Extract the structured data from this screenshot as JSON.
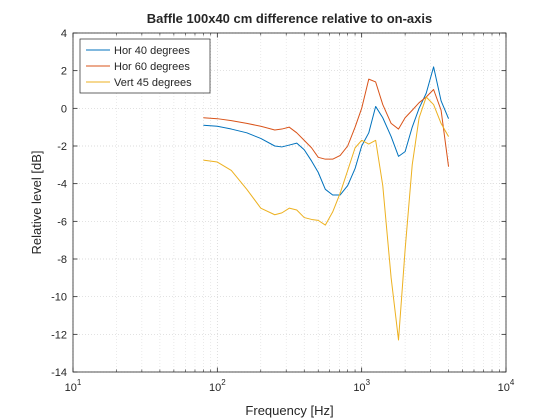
{
  "chart_data": {
    "type": "line",
    "title": "Baffle 100x40 cm difference relative to on-axis",
    "xlabel": "Frequency [Hz]",
    "ylabel": "Relative level [dB]",
    "xscale": "log",
    "xlim": [
      10,
      10000
    ],
    "ylim": [
      -14,
      4
    ],
    "x_ticks": [
      {
        "value": 10,
        "base": "10",
        "exp": "1"
      },
      {
        "value": 100,
        "base": "10",
        "exp": "2"
      },
      {
        "value": 1000,
        "base": "10",
        "exp": "3"
      },
      {
        "value": 10000,
        "base": "10",
        "exp": "4"
      }
    ],
    "y_ticks": [
      4,
      2,
      0,
      -2,
      -4,
      -6,
      -8,
      -10,
      -12,
      -14
    ],
    "grid": true,
    "legend_position": "top-left",
    "series": [
      {
        "name": "Hor 40 degrees",
        "color": "#0072bd",
        "x": [
          80,
          100,
          125,
          160,
          200,
          250,
          280,
          315,
          355,
          400,
          450,
          500,
          560,
          630,
          710,
          800,
          900,
          1000,
          1120,
          1250,
          1400,
          1600,
          1800,
          2000,
          2240,
          2500,
          2800,
          3150,
          3550,
          4000
        ],
        "y": [
          -0.9,
          -0.95,
          -1.1,
          -1.3,
          -1.6,
          -2.0,
          -2.05,
          -1.95,
          -1.85,
          -2.2,
          -2.8,
          -3.4,
          -4.3,
          -4.6,
          -4.6,
          -4.1,
          -3.2,
          -2.0,
          -1.3,
          0.1,
          -0.5,
          -1.5,
          -2.55,
          -2.3,
          -1.0,
          0.0,
          0.8,
          2.2,
          0.4,
          -0.55
        ]
      },
      {
        "name": "Hor 60 degrees",
        "color": "#d95319",
        "x": [
          80,
          100,
          125,
          160,
          200,
          250,
          280,
          315,
          355,
          400,
          450,
          500,
          560,
          630,
          710,
          800,
          900,
          1000,
          1120,
          1250,
          1400,
          1600,
          1800,
          2000,
          2240,
          2500,
          2800,
          3150,
          3550,
          4000
        ],
        "y": [
          -0.5,
          -0.55,
          -0.65,
          -0.8,
          -0.95,
          -1.15,
          -1.1,
          -1.0,
          -1.3,
          -1.7,
          -2.1,
          -2.6,
          -2.7,
          -2.7,
          -2.5,
          -2.0,
          -1.0,
          0.0,
          1.55,
          1.4,
          0.2,
          -0.8,
          -1.1,
          -0.5,
          -0.1,
          0.3,
          0.6,
          1.0,
          -0.1,
          -3.1
        ]
      },
      {
        "name": "Vert 45 degrees",
        "color": "#edb120",
        "x": [
          80,
          100,
          125,
          160,
          200,
          250,
          280,
          315,
          355,
          400,
          450,
          500,
          560,
          630,
          710,
          800,
          900,
          1000,
          1120,
          1250,
          1400,
          1600,
          1800,
          2000,
          2240,
          2500,
          2800,
          3150,
          3550,
          4000
        ],
        "y": [
          -2.75,
          -2.85,
          -3.3,
          -4.3,
          -5.3,
          -5.65,
          -5.55,
          -5.3,
          -5.4,
          -5.8,
          -5.9,
          -5.95,
          -6.2,
          -5.5,
          -4.5,
          -3.3,
          -2.1,
          -1.7,
          -1.9,
          -1.7,
          -4.1,
          -9.0,
          -12.3,
          -7.5,
          -3.0,
          -0.5,
          0.6,
          0.2,
          -0.8,
          -1.5
        ]
      }
    ]
  }
}
